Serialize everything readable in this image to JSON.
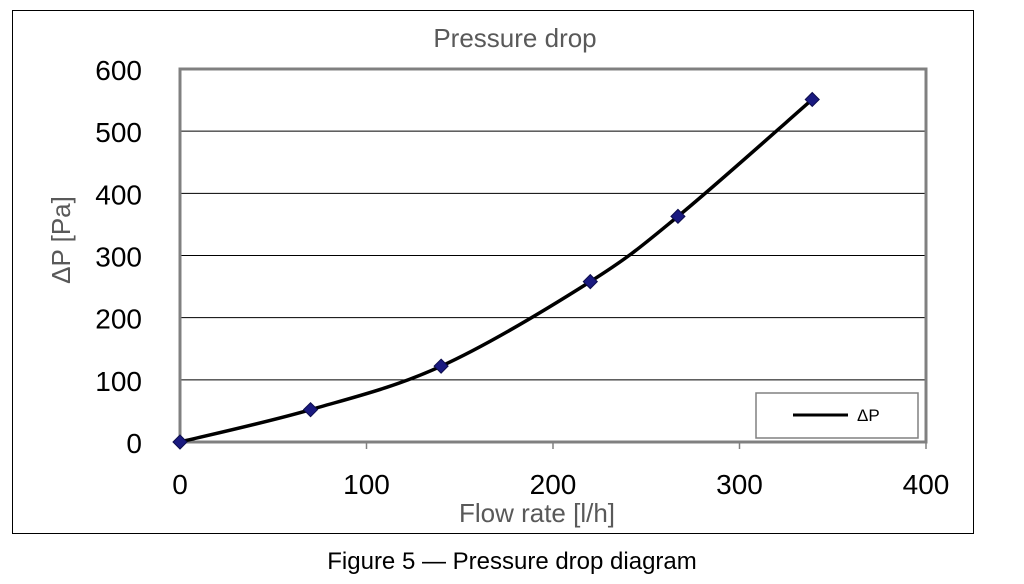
{
  "caption": "Figure 5 — Pressure drop diagram",
  "chart_data": {
    "type": "line",
    "title": "Pressure drop",
    "xlabel": "Flow rate [l/h]",
    "ylabel": "ΔP [Pa]",
    "xlim": [
      0,
      400
    ],
    "ylim": [
      0,
      600
    ],
    "xticks": [
      "0",
      "100",
      "200",
      "300",
      "400"
    ],
    "yticks": [
      "0",
      "100",
      "200",
      "300",
      "400",
      "500",
      "600"
    ],
    "grid": "horizontal",
    "legend_position": "bottom-right",
    "series": [
      {
        "name": "ΔP",
        "points": [
          [
            0,
            0
          ],
          [
            70,
            52
          ],
          [
            140,
            122
          ],
          [
            220,
            258
          ],
          [
            267,
            363
          ],
          [
            339,
            551
          ]
        ],
        "marker": "diamond",
        "marker_color": "#1a1a80",
        "line_color": "#000000"
      }
    ]
  }
}
